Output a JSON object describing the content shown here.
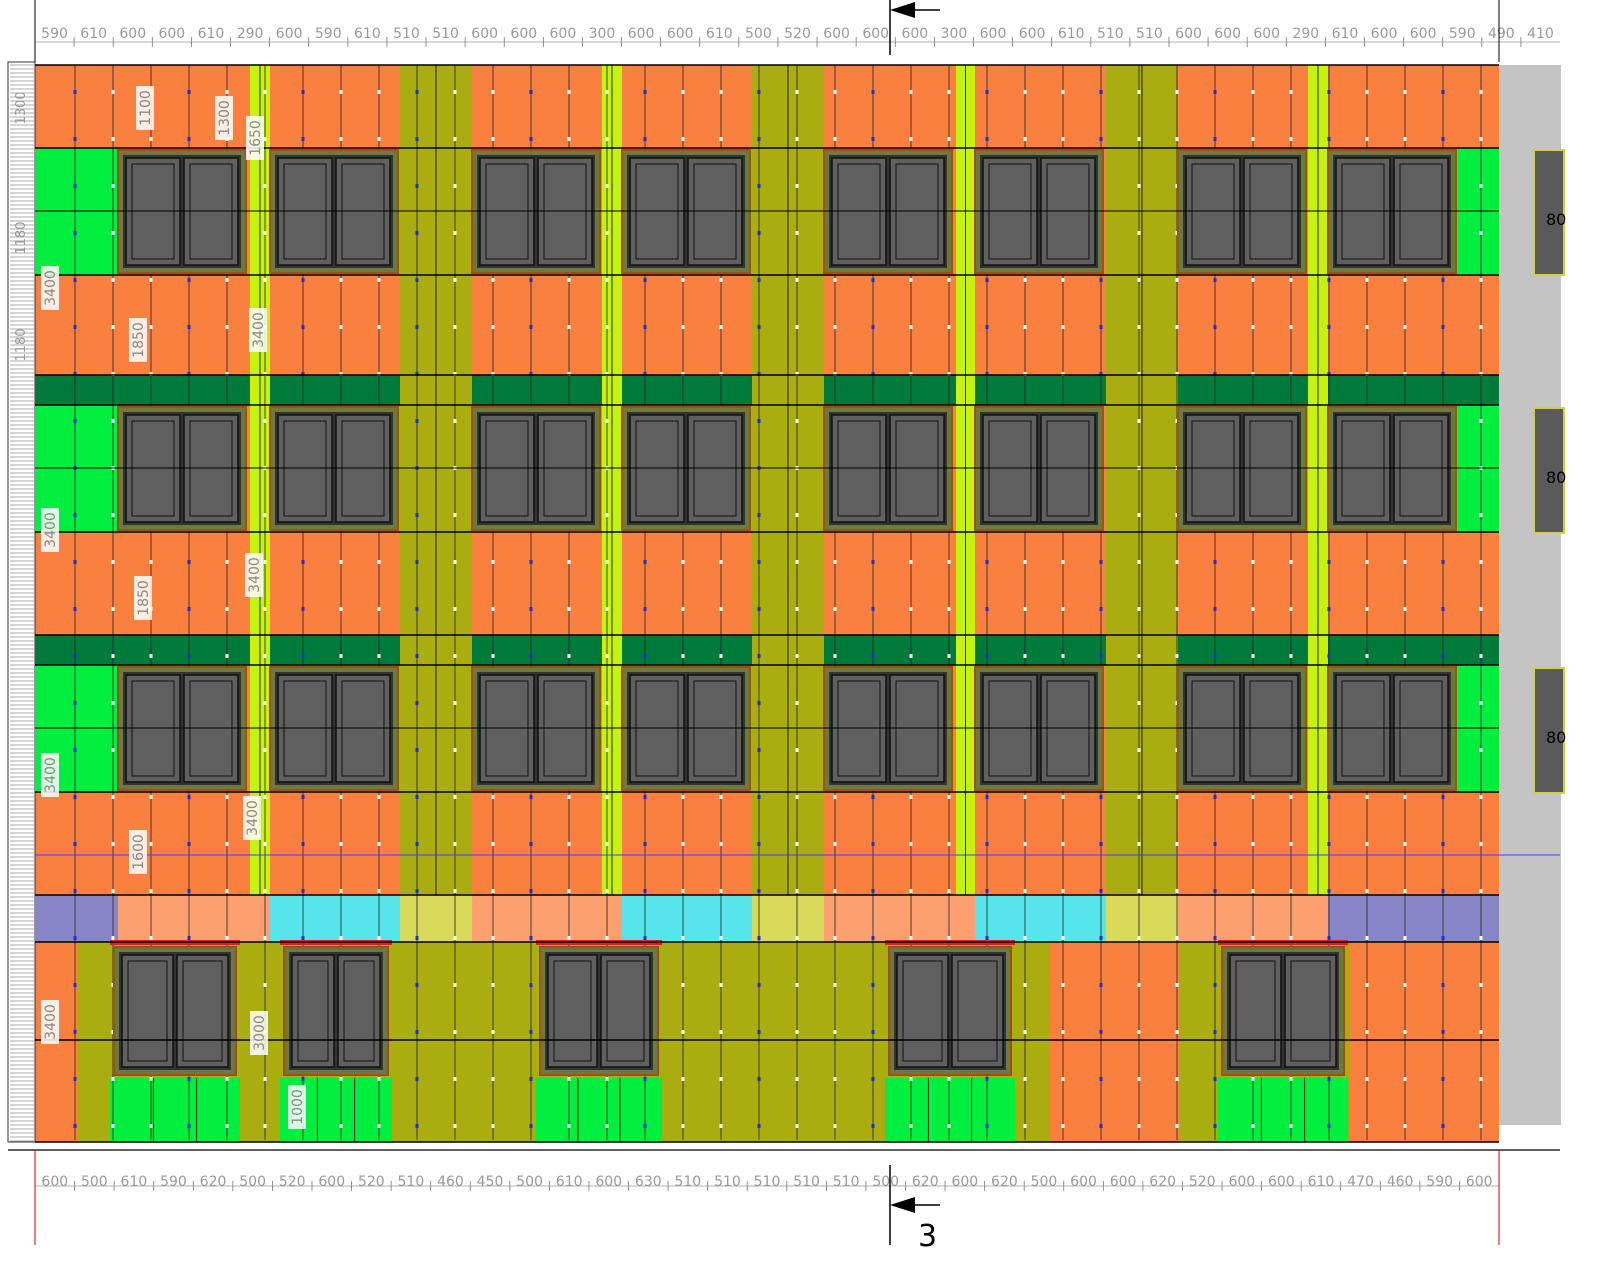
{
  "drawing": {
    "section_label": "3",
    "top_dims": [
      "590",
      "610",
      "600",
      "600",
      "610",
      "290",
      "600",
      "590",
      "610",
      "510",
      "510",
      "600",
      "600",
      "600",
      "300",
      "600",
      "600",
      "610",
      "500",
      "520",
      "600",
      "600",
      "600",
      "300",
      "600",
      "600",
      "610",
      "510",
      "510",
      "600",
      "600",
      "600",
      "290",
      "610",
      "600",
      "600",
      "590",
      "490",
      "410"
    ],
    "bottom_dims": [
      "600",
      "500",
      "610",
      "590",
      "620",
      "500",
      "520",
      "600",
      "520",
      "510",
      "460",
      "450",
      "500",
      "610",
      "600",
      "630",
      "510",
      "510",
      "510",
      "510",
      "510",
      "500",
      "620",
      "600",
      "620",
      "500",
      "600",
      "600",
      "620",
      "520",
      "600",
      "600",
      "610",
      "470",
      "460",
      "590",
      "600"
    ],
    "height_labels": [
      "1100",
      "1300",
      "1650",
      "3400",
      "1850",
      "3400",
      "3400",
      "1850",
      "3400",
      "3400",
      "1600",
      "3400",
      "3400",
      "3000",
      "1000"
    ],
    "left_axis_labels": [
      "1300",
      "1180",
      "1180"
    ],
    "right_window_label": "80"
  },
  "colors": {
    "cladding_orange": "#fa8040",
    "olive": "#a9ad0f",
    "lime": "#c6f20f",
    "green": "#00ef3f",
    "light_green": "#7dfa7d",
    "dark_green": "#007a3a",
    "teal": "#3d7f7f",
    "blue": "#1e4fb0",
    "red_pink": "#f05050",
    "peach": "#fca070",
    "cyan": "#55e5ea",
    "khaki": "#dada5a",
    "lavender": "#8585c8",
    "window_frame": "#5f5f5f",
    "side_grey": "#c4c4c4"
  }
}
